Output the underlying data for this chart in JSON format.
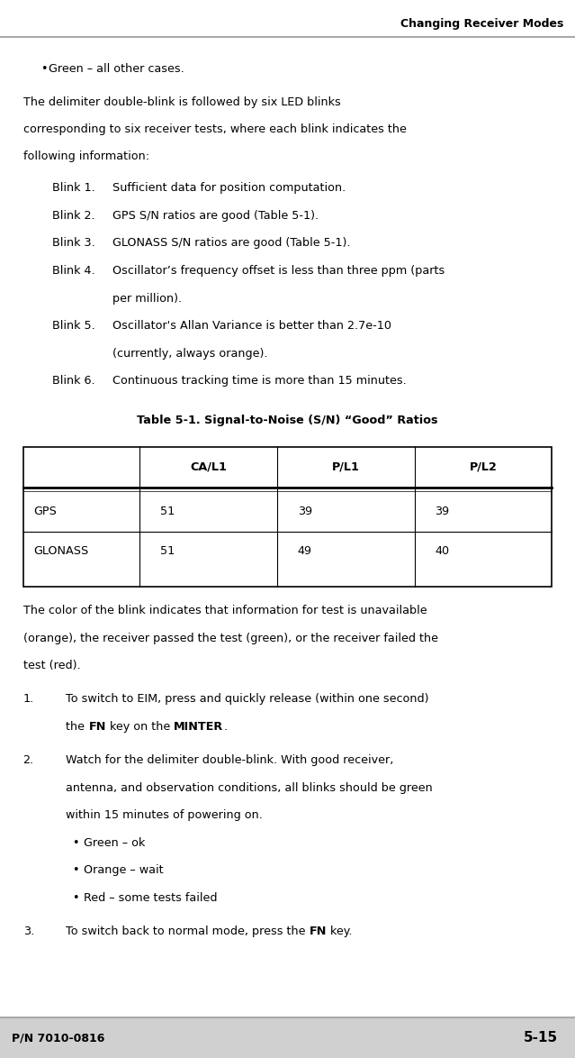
{
  "header_text": "Changing Receiver Modes",
  "footer_left": "P/N 7010-0816",
  "footer_right": "5-15",
  "header_line_color": "#aaaaaa",
  "footer_line_color": "#aaaaaa",
  "footer_bg_color": "#d0d0d0",
  "bg_color": "#ffffff",
  "body_lines": [
    {
      "type": "bullet",
      "indent": 0.07,
      "text": "Green – all other cases."
    },
    {
      "type": "para",
      "indent": 0.04,
      "text": "The delimiter double-blink is followed by six LED blinks\ncorresponding to six receiver tests, where each blink indicates the\nfollowing information:"
    },
    {
      "type": "blink",
      "label": "Blink 1.",
      "indent1": 0.09,
      "indent2": 0.2,
      "text": "Sufficient data for position computation."
    },
    {
      "type": "blink",
      "label": "Blink 2.",
      "indent1": 0.09,
      "indent2": 0.2,
      "text": "GPS S/N ratios are good (Table 5-1)."
    },
    {
      "type": "blink",
      "label": "Blink 3.",
      "indent1": 0.09,
      "indent2": 0.2,
      "text": "GLONASS S/N ratios are good (Table 5-1)."
    },
    {
      "type": "blink_wrap",
      "label": "Blink 4.",
      "indent1": 0.09,
      "indent2": 0.2,
      "text": "Oscillator’s frequency offset is less than three ppm (parts\nper million)."
    },
    {
      "type": "blink_wrap",
      "label": "Blink 5.",
      "indent1": 0.09,
      "indent2": 0.2,
      "text": "Oscillator's Allan Variance is better than 2.7e-10\n(currently, always orange)."
    },
    {
      "type": "blink",
      "label": "Blink 6.",
      "indent1": 0.09,
      "indent2": 0.2,
      "text": "Continuous tracking time is more than 15 minutes."
    }
  ],
  "table_title": "Table 5-1. Signal-to-Noise (S/N) “Good” Ratios",
  "table_headers": [
    "",
    "CA/L1",
    "P/L1",
    "P/L2"
  ],
  "table_rows": [
    [
      "GPS",
      "51",
      "39",
      "39"
    ],
    [
      "GLONASS",
      "51",
      "49",
      "40"
    ]
  ],
  "post_table_lines": [
    {
      "type": "para",
      "indent": 0.04,
      "text": "The color of the blink indicates that information for test is unavailable\n(orange), the receiver passed the test (green), or the receiver failed the\ntest (red)."
    },
    {
      "type": "numbered",
      "num": "1.",
      "indent1": 0.04,
      "indent2": 0.115,
      "text": "To switch to EIM, press and quickly release (within one second)\nthe <b>FN</b> key on the <b>MINTER</b>."
    },
    {
      "type": "numbered",
      "num": "2.",
      "indent1": 0.04,
      "indent2": 0.115,
      "text": "Watch for the delimiter double-blink. With good receiver,\nantenna, and observation conditions, all blinks should be green\nwithin 15 minutes of powering on."
    },
    {
      "type": "bullet2",
      "indent": 0.125,
      "text": "Green – ok"
    },
    {
      "type": "bullet2",
      "indent": 0.125,
      "text": "Orange – wait"
    },
    {
      "type": "bullet2",
      "indent": 0.125,
      "text": "Red – some tests failed"
    },
    {
      "type": "numbered",
      "num": "3.",
      "indent1": 0.04,
      "indent2": 0.115,
      "text": "To switch back to normal mode, press the <b>FN</b> key."
    }
  ]
}
